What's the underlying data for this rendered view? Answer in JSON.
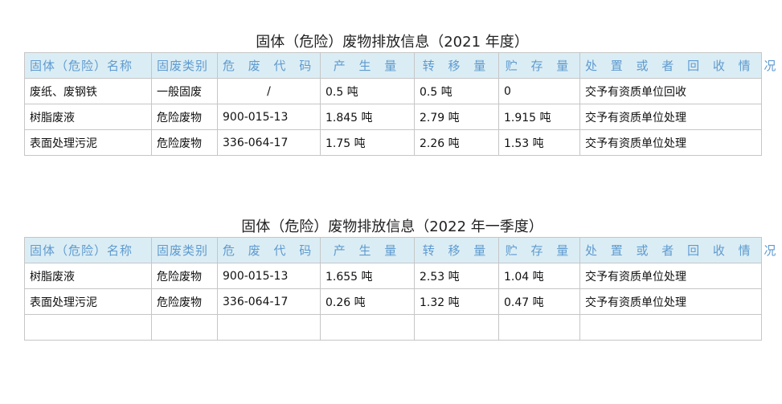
{
  "headers": [
    "固体（危险）名称",
    "固废类别",
    "危 废 代 码",
    "产 生 量",
    "转 移 量",
    "贮 存 量",
    "处 置 或 者 回 收 情 况"
  ],
  "table1": {
    "title": "固体（危险）废物排放信息（2021 年度）",
    "rows": [
      [
        "废纸、废钢铁",
        "一般固废",
        "/",
        "0.5 吨",
        "0.5 吨",
        "0",
        "交予有资质单位回收"
      ],
      [
        "树脂废液",
        "危险废物",
        "900-015-13",
        "1.845 吨",
        "2.79 吨",
        "1.915 吨",
        "交予有资质单位处理"
      ],
      [
        "表面处理污泥",
        "危险废物",
        "336-064-17",
        "1.75 吨",
        "2.26 吨",
        "1.53 吨",
        "交予有资质单位处理"
      ]
    ]
  },
  "table2": {
    "title": "固体（危险）废物排放信息（2022 年一季度）",
    "rows": [
      [
        "树脂废液",
        "危险废物",
        "900-015-13",
        "1.655 吨",
        "2.53 吨",
        "1.04 吨",
        "交予有资质单位处理"
      ],
      [
        "表面处理污泥",
        "危险废物",
        "336-064-17",
        "0.26 吨",
        "1.32 吨",
        "0.47 吨",
        "交予有资质单位处理"
      ],
      [
        "",
        "",
        "",
        "",
        "",
        "",
        ""
      ]
    ]
  }
}
